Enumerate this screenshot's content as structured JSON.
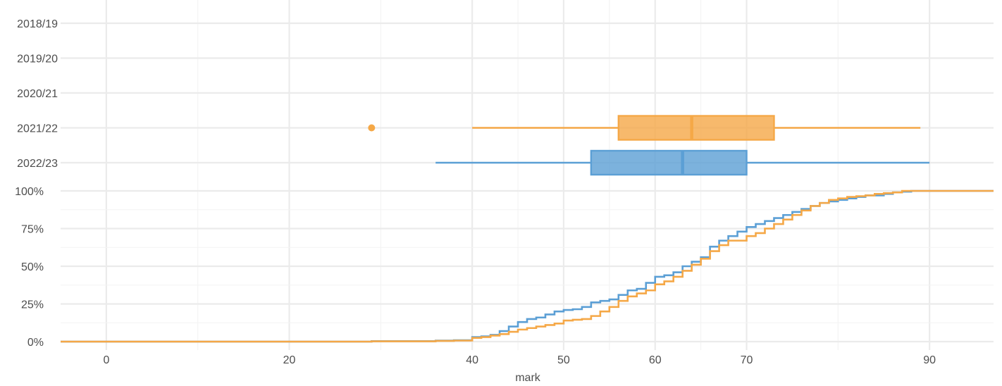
{
  "chart_data": [
    {
      "type": "boxplot",
      "title": "",
      "xlabel": "",
      "ylabel": "",
      "categories": [
        "2018/19",
        "2019/20",
        "2020/21",
        "2021/22",
        "2022/23"
      ],
      "xlim": [
        -5,
        97
      ],
      "grid": true,
      "boxes": [
        {
          "category": "2021/22",
          "min": 40,
          "q1": 56,
          "median": 64,
          "q3": 73,
          "max": 89,
          "outliers": [
            29
          ],
          "color": "#F5A847"
        },
        {
          "category": "2022/23",
          "min": 36,
          "q1": 53,
          "median": 63,
          "q3": 70,
          "max": 90,
          "outliers": [],
          "color": "#5B9FD5"
        }
      ]
    },
    {
      "type": "line",
      "subtype": "ecdf-step",
      "title": "",
      "xlabel": "mark",
      "ylabel": "",
      "x_ticks": [
        0,
        20,
        40,
        50,
        60,
        70,
        90
      ],
      "y_ticks": [
        "0%",
        "25%",
        "50%",
        "75%",
        "100%"
      ],
      "xlim": [
        -5,
        97
      ],
      "ylim": [
        0,
        1
      ],
      "grid": true,
      "series": [
        {
          "color": "#5B9FD5",
          "x": [
            -5,
            29,
            36,
            38,
            40,
            41,
            42,
            43,
            44,
            45,
            46,
            47,
            48,
            49,
            50,
            51,
            52,
            53,
            54,
            55,
            56,
            57,
            58,
            59,
            60,
            61,
            62,
            63,
            64,
            65,
            66,
            67,
            68,
            69,
            70,
            71,
            72,
            73,
            74,
            75,
            76,
            77,
            78,
            79,
            80,
            81,
            82,
            83,
            84,
            85,
            86,
            87,
            88,
            89,
            90,
            97
          ],
          "y": [
            0,
            0.003,
            0.007,
            0.009,
            0.03,
            0.035,
            0.045,
            0.07,
            0.1,
            0.13,
            0.15,
            0.16,
            0.18,
            0.2,
            0.21,
            0.215,
            0.23,
            0.26,
            0.27,
            0.28,
            0.31,
            0.34,
            0.35,
            0.39,
            0.43,
            0.44,
            0.46,
            0.5,
            0.53,
            0.56,
            0.63,
            0.67,
            0.7,
            0.73,
            0.76,
            0.78,
            0.8,
            0.82,
            0.84,
            0.86,
            0.88,
            0.9,
            0.92,
            0.93,
            0.94,
            0.95,
            0.96,
            0.97,
            0.97,
            0.98,
            0.99,
            0.995,
            1.0,
            1.0,
            1.0,
            1.0
          ]
        },
        {
          "color": "#F5A847",
          "x": [
            -5,
            29,
            36,
            38,
            40,
            41,
            42,
            43,
            44,
            45,
            46,
            47,
            48,
            49,
            50,
            51,
            52,
            53,
            54,
            55,
            56,
            57,
            58,
            59,
            60,
            61,
            62,
            63,
            64,
            65,
            66,
            67,
            68,
            69,
            70,
            71,
            72,
            73,
            74,
            75,
            76,
            77,
            78,
            79,
            80,
            81,
            82,
            83,
            84,
            85,
            86,
            87,
            88,
            89,
            90,
            97
          ],
          "y": [
            0,
            0.002,
            0.005,
            0.007,
            0.025,
            0.03,
            0.04,
            0.05,
            0.065,
            0.08,
            0.09,
            0.1,
            0.11,
            0.12,
            0.14,
            0.145,
            0.15,
            0.17,
            0.2,
            0.23,
            0.27,
            0.3,
            0.32,
            0.34,
            0.38,
            0.4,
            0.43,
            0.47,
            0.51,
            0.55,
            0.6,
            0.64,
            0.67,
            0.67,
            0.7,
            0.72,
            0.75,
            0.78,
            0.81,
            0.84,
            0.87,
            0.9,
            0.92,
            0.94,
            0.95,
            0.96,
            0.965,
            0.97,
            0.98,
            0.985,
            0.99,
            1.0,
            1.0,
            1.0,
            1.0,
            1.0
          ]
        }
      ]
    }
  ]
}
